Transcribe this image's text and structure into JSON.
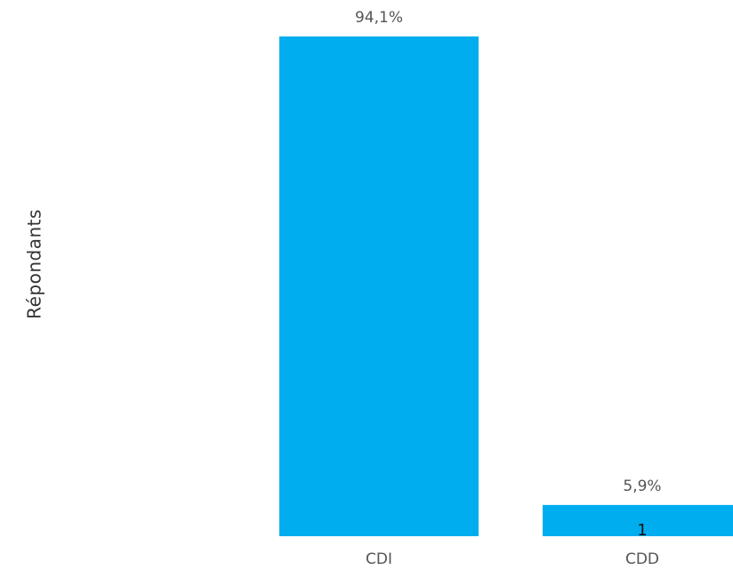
{
  "chart_data": {
    "type": "bar",
    "ylabel": "Répondants",
    "categories": [
      "CDI",
      "CDD"
    ],
    "values": [
      16,
      1
    ],
    "percent_labels": [
      "94,1%",
      "5,9%"
    ],
    "count_labels": [
      "",
      "1"
    ],
    "ylim": [
      0,
      16
    ],
    "bar_color": "#00ADEF",
    "grid": false,
    "legend": "none"
  }
}
